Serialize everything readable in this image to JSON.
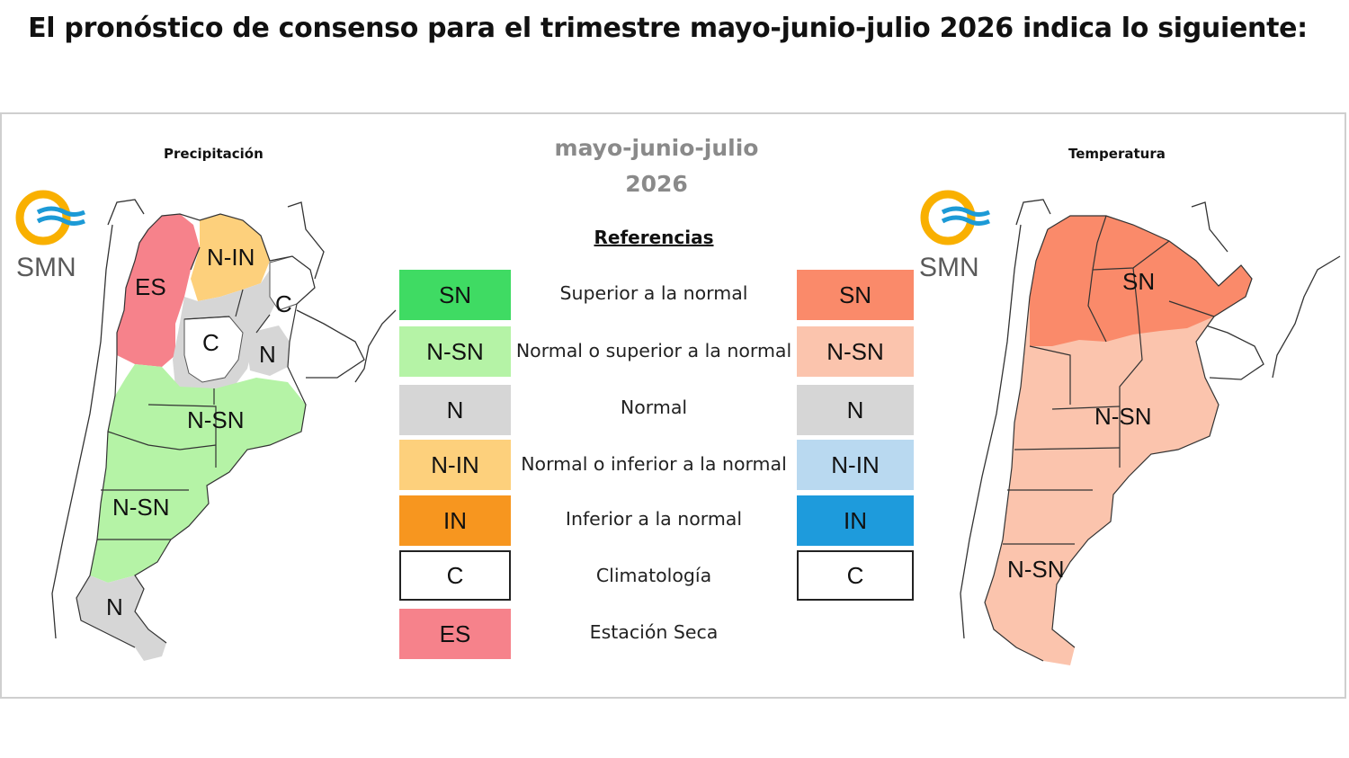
{
  "headline": "El pronóstico de consenso para el trimestre mayo-junio-julio 2026 indica lo siguiente:",
  "precip_title": "Precipitación",
  "temp_title": "Temperatura",
  "season": {
    "months": "mayo-junio-julio",
    "year": "2026"
  },
  "references_title": "Referencias",
  "logo_text": "SMN",
  "legend": [
    {
      "code_precip": "SN",
      "label": "Superior a la normal",
      "code_temp": "SN",
      "precip_color": "#3fdb63",
      "temp_color": "#fa8a6a"
    },
    {
      "code_precip": "N-SN",
      "label": "Normal o superior a la normal",
      "code_temp": "N-SN",
      "precip_color": "#b5f3a6",
      "temp_color": "#fbc4ad"
    },
    {
      "code_precip": "N",
      "label": "Normal",
      "code_temp": "N",
      "precip_color": "#d6d6d6",
      "temp_color": "#d6d6d6"
    },
    {
      "code_precip": "N-IN",
      "label": "Normal o inferior a la normal",
      "code_temp": "N-IN",
      "precip_color": "#fdd07c",
      "temp_color": "#b9d9f0"
    },
    {
      "code_precip": "IN",
      "label": "Inferior a la normal",
      "code_temp": "IN",
      "precip_color": "#f7961f",
      "temp_color": "#1e9bdc"
    },
    {
      "code_precip": "C",
      "label": "Climatología",
      "code_temp": "C",
      "precip_color": "#ffffff",
      "temp_color": "#ffffff"
    },
    {
      "code_precip": "ES",
      "label": "Estación Seca",
      "precip_color": "#f6828b"
    }
  ],
  "precip_map": {
    "labels": [
      "N-IN",
      "ES",
      "C",
      "C",
      "N",
      "N-SN",
      "N-SN",
      "N"
    ]
  },
  "temp_map": {
    "labels": [
      "SN",
      "N-SN",
      "N-SN"
    ]
  },
  "colors": {
    "logo_yellow": "#f9b000",
    "logo_blue": "#1c9ad6"
  }
}
